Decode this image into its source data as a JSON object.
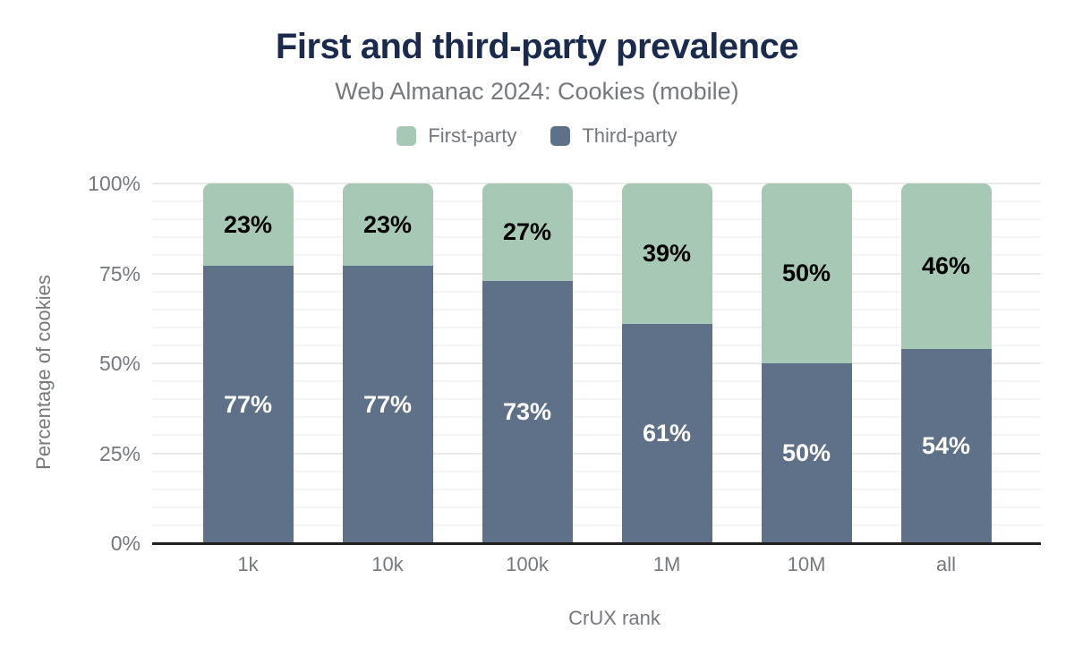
{
  "chart_data": {
    "type": "bar",
    "stacked": true,
    "title": "First and third-party prevalence",
    "subtitle": "Web Almanac 2024: Cookies (mobile)",
    "xlabel": "CrUX rank",
    "ylabel": "Percentage of cookies",
    "categories": [
      "1k",
      "10k",
      "100k",
      "1M",
      "10M",
      "all"
    ],
    "series": [
      {
        "name": "First-party",
        "color": "#a6c8b4",
        "label_color": "#000000",
        "values": [
          23,
          23,
          27,
          39,
          50,
          46
        ]
      },
      {
        "name": "Third-party",
        "color": "#5e7189",
        "label_color": "#ffffff",
        "values": [
          77,
          77,
          73,
          61,
          50,
          54
        ]
      }
    ],
    "stack_note": "series listed top-to-bottom; Third-party is the bottom segment",
    "value_suffix": "%",
    "ylim": [
      0,
      100
    ],
    "yticks": [
      {
        "label": "0%",
        "value": 0
      },
      {
        "label": "25%",
        "value": 25
      },
      {
        "label": "50%",
        "value": 50
      },
      {
        "label": "75%",
        "value": 75
      },
      {
        "label": "100%",
        "value": 100
      }
    ],
    "grid": {
      "minor_step": 5,
      "major_step": 25
    },
    "legend_position": "top"
  },
  "colors": {
    "title": "#1b2b4d",
    "text_gray": "#75787d",
    "axis_line": "#202020",
    "background": "#ffffff"
  }
}
